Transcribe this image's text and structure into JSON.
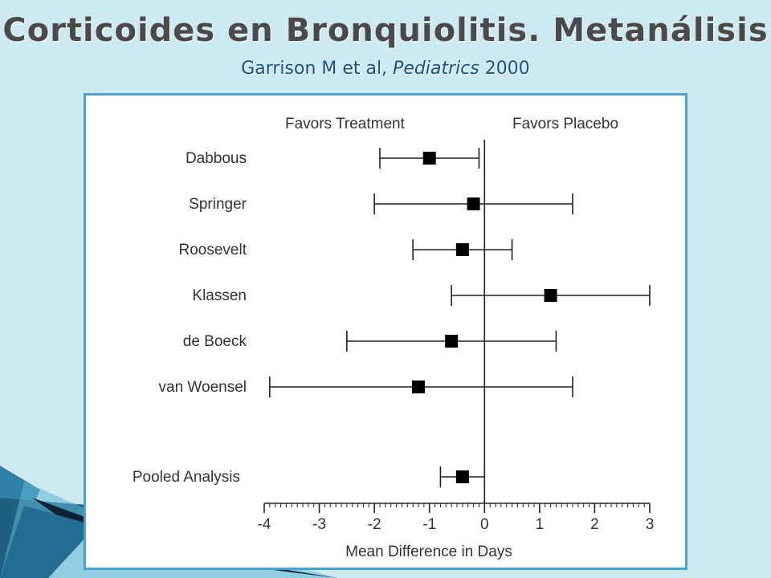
{
  "slide": {
    "title": "Corticoides en Bronquiolitis. Metanálisis",
    "subtitle_authors": "Garrison M et al, ",
    "subtitle_journal": "Pediatrics",
    "subtitle_year": " 2000"
  },
  "colors": {
    "background": "#cde9f1",
    "title": "#4a4a4a",
    "subtitle": "#1a4f8a",
    "frame_border": "#4aa3cc",
    "marker": "#000000"
  },
  "chart_data": {
    "type": "scatter",
    "subtype": "forest-plot",
    "xlabel": "Mean Difference in Days",
    "xlim": [
      -4,
      3
    ],
    "x_ticks": [
      -4,
      -3,
      -2,
      -1,
      0,
      1,
      2,
      3
    ],
    "x_tick_labels": [
      "-4",
      "-3",
      "-2",
      "-1",
      "0",
      "1",
      "2",
      "3"
    ],
    "reference_line": 0,
    "header_left": "Favors Treatment",
    "header_right": "Favors Placebo",
    "studies": [
      {
        "label": "Dabbous",
        "mean": -1.0,
        "lower": -1.9,
        "upper": -0.1
      },
      {
        "label": "Springer",
        "mean": -0.2,
        "lower": -2.0,
        "upper": 1.6
      },
      {
        "label": "Roosevelt",
        "mean": -0.4,
        "lower": -1.3,
        "upper": 0.5
      },
      {
        "label": "Klassen",
        "mean": 1.2,
        "lower": -0.6,
        "upper": 3.0
      },
      {
        "label": "de Boeck",
        "mean": -0.6,
        "lower": -2.5,
        "upper": 1.3
      },
      {
        "label": "van Woensel",
        "mean": -1.2,
        "lower": -3.9,
        "upper": 1.6
      }
    ],
    "pooled": {
      "label": "Pooled Analysis",
      "mean": -0.4,
      "lower": -0.8,
      "upper": 0.0
    },
    "grid": false,
    "legend": "none"
  }
}
